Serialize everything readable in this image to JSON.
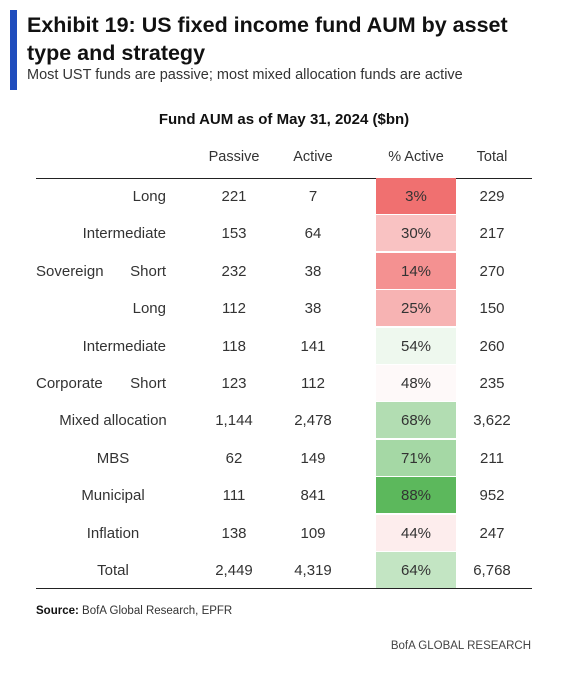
{
  "header": {
    "title": "Exhibit 19: US fixed income fund AUM by asset type and strategy",
    "subtitle": "Most UST funds are passive; most mixed allocation funds are active",
    "accent_color": "#1f4dbd"
  },
  "chart_data": {
    "type": "table",
    "title": "Fund AUM as of May 31, 2024 ($bn)",
    "columns": [
      "Passive",
      "Active",
      "% Active",
      "Total"
    ],
    "rows": [
      {
        "group": "",
        "label": "Long",
        "passive": "221",
        "active": "7",
        "pct": "3%",
        "pct_value": 3,
        "total": "229"
      },
      {
        "group": "",
        "label": "Intermediate",
        "passive": "153",
        "active": "64",
        "pct": "30%",
        "pct_value": 30,
        "total": "217"
      },
      {
        "group": "Sovereign",
        "label": "Short",
        "passive": "232",
        "active": "38",
        "pct": "14%",
        "pct_value": 14,
        "total": "270"
      },
      {
        "group": "",
        "label": "Long",
        "passive": "112",
        "active": "38",
        "pct": "25%",
        "pct_value": 25,
        "total": "150"
      },
      {
        "group": "",
        "label": "Intermediate",
        "passive": "118",
        "active": "141",
        "pct": "54%",
        "pct_value": 54,
        "total": "260"
      },
      {
        "group": "Corporate",
        "label": "Short",
        "passive": "123",
        "active": "112",
        "pct": "48%",
        "pct_value": 48,
        "total": "235"
      },
      {
        "group": "",
        "label": "Mixed allocation",
        "passive": "1,144",
        "active": "2,478",
        "pct": "68%",
        "pct_value": 68,
        "total": "3,622"
      },
      {
        "group": "",
        "label": "MBS",
        "passive": "62",
        "active": "149",
        "pct": "71%",
        "pct_value": 71,
        "total": "211"
      },
      {
        "group": "",
        "label": "Municipal",
        "passive": "111",
        "active": "841",
        "pct": "88%",
        "pct_value": 88,
        "total": "952"
      },
      {
        "group": "",
        "label": "Inflation",
        "passive": "138",
        "active": "109",
        "pct": "44%",
        "pct_value": 44,
        "total": "247"
      },
      {
        "group": "",
        "label": "Total",
        "passive": "2,449",
        "active": "4,319",
        "pct": "64%",
        "pct_value": 64,
        "total": "6,768"
      }
    ],
    "heatmap_colors": {
      "low": "#f07070",
      "mid": "#ffffff",
      "high": "#5cb85c"
    }
  },
  "source": {
    "label": "Source:",
    "text": "BofA Global Research, EPFR"
  },
  "footer": {
    "brand": "BofA GLOBAL RESEARCH"
  }
}
